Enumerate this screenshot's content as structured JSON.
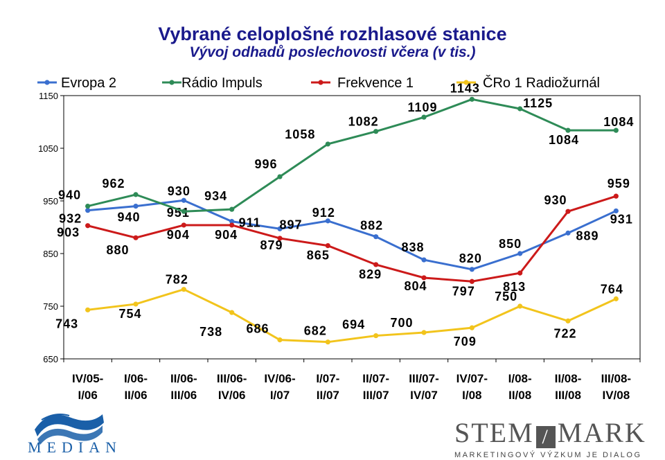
{
  "title": "Vybrané celoplošné rozhlasové stanice",
  "subtitle": "Vývoj odhadů poslechovosti včera (v tis.)",
  "chart_data": {
    "type": "line",
    "categories": [
      [
        "IV/05-",
        "I/06"
      ],
      [
        "I/06-",
        "II/06"
      ],
      [
        "II/06-",
        "III/06"
      ],
      [
        "III/06-",
        "IV/06"
      ],
      [
        "IV/06-",
        "I/07"
      ],
      [
        "I/07-",
        "II/07"
      ],
      [
        "II/07-",
        "III/07"
      ],
      [
        "III/07-",
        "IV/07"
      ],
      [
        "IV/07-",
        "I/08"
      ],
      [
        "I/08-",
        "II/08"
      ],
      [
        "II/08-",
        "III/08"
      ],
      [
        "III/08-",
        "IV/08"
      ]
    ],
    "ylim": [
      650,
      1150
    ],
    "yticks": [
      650,
      750,
      850,
      950,
      1050,
      1150
    ],
    "legend_position": "top",
    "series": [
      {
        "name": "Evropa 2",
        "color": "#3a6fcf",
        "values": [
          932,
          940,
          951,
          911,
          897,
          912,
          882,
          838,
          820,
          850,
          889,
          931
        ]
      },
      {
        "name": "Rádio Impuls",
        "color": "#2e8b57",
        "values": [
          940,
          962,
          930,
          934,
          996,
          1058,
          1082,
          1109,
          1143,
          1125,
          1084,
          1084
        ]
      },
      {
        "name": "Frekvence 1",
        "color": "#cc1a1a",
        "values": [
          903,
          880,
          904,
          904,
          879,
          865,
          829,
          804,
          797,
          813,
          930,
          959
        ]
      },
      {
        "name": "ČRo 1 Radiožurnál",
        "color": "#f2c41c",
        "values": [
          743,
          754,
          782,
          738,
          686,
          682,
          694,
          700,
          709,
          750,
          722,
          764
        ]
      }
    ]
  },
  "logos": {
    "median": "MEDIAN",
    "stemmark": "STEM",
    "stemmark_suffix": "MARK",
    "stemmark_tagline": "MARKETINGOVÝ VÝZKUM JE DIALOG"
  }
}
